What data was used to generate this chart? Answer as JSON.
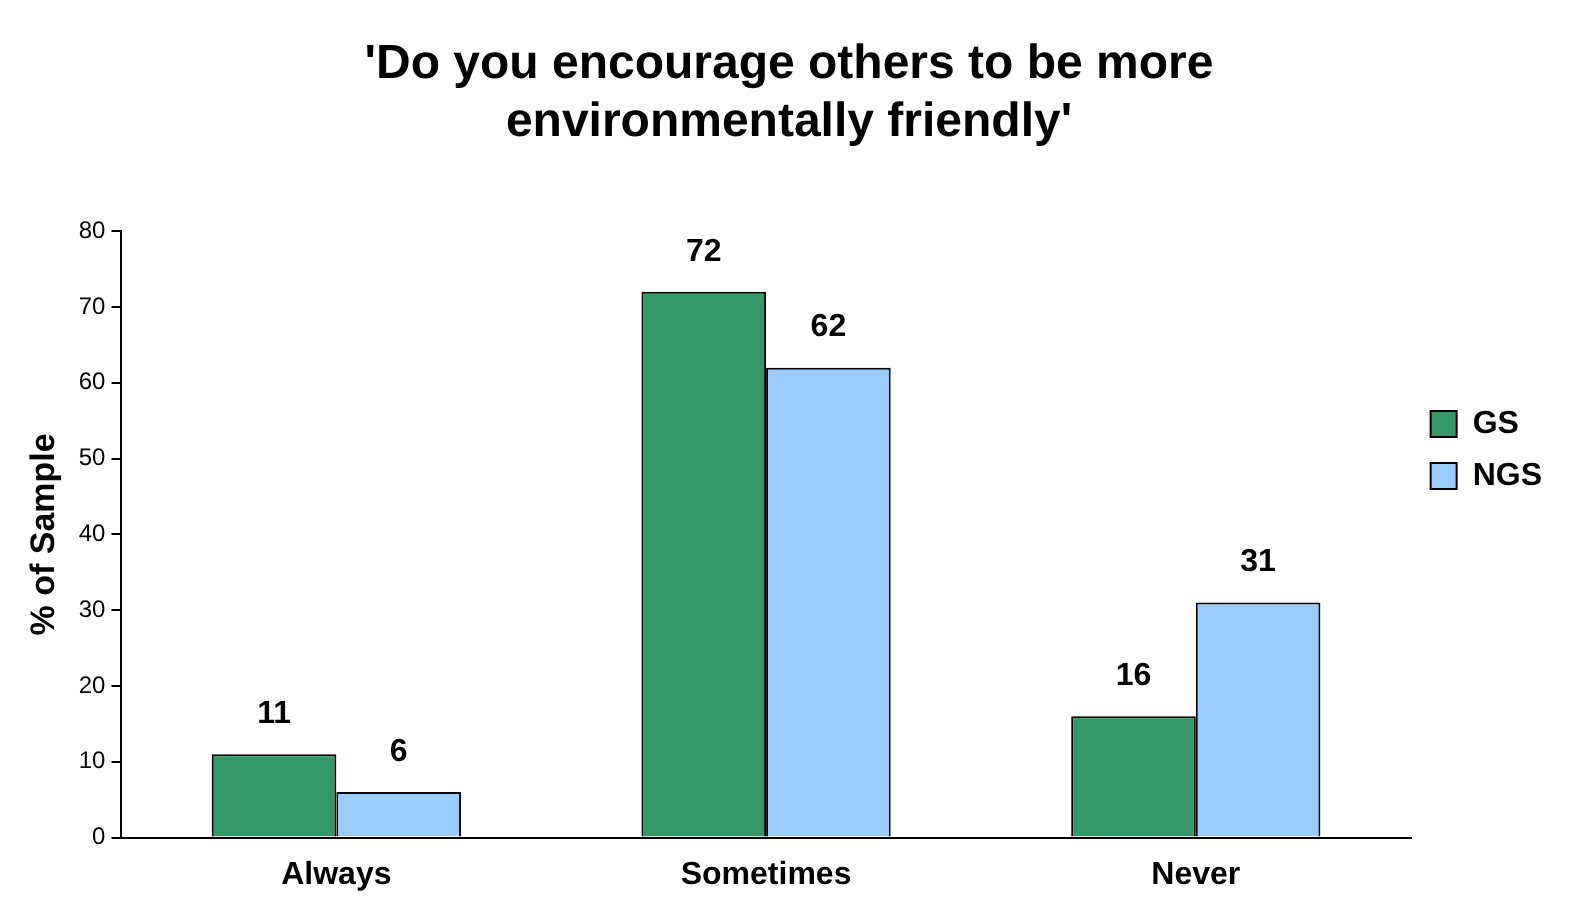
{
  "chart_data": {
    "type": "bar",
    "title": [
      "'Do you encourage others to be more",
      "environmentally friendly'"
    ],
    "ylabel": "% of Sample",
    "categories": [
      "Always",
      "Sometimes",
      "Never"
    ],
    "series": [
      {
        "name": "GS",
        "color": "#339966",
        "values": [
          11,
          72,
          16
        ]
      },
      {
        "name": "NGS",
        "color": "#99ccff",
        "values": [
          6,
          62,
          31
        ]
      }
    ],
    "ylim": [
      0,
      80
    ],
    "yticks": [
      0,
      10,
      20,
      30,
      40,
      50,
      60,
      70,
      80
    ],
    "grid": false,
    "legend": "right",
    "data_labels": true
  }
}
